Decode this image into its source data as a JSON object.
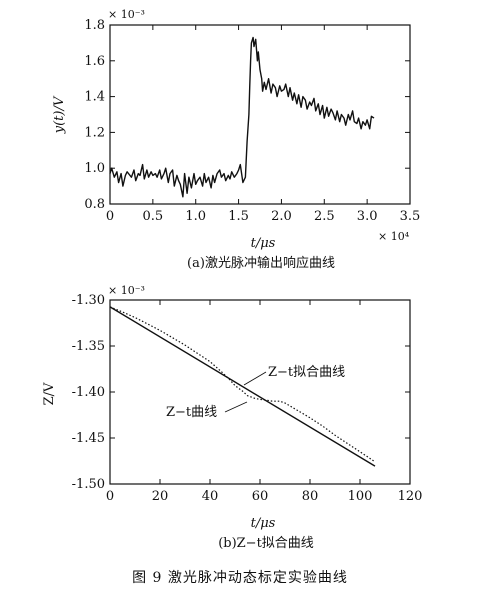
{
  "figure_caption": "图 9   激光脉冲动态标定实验曲线",
  "chart_data": [
    {
      "type": "line",
      "caption": "(a)激光脉冲输出响应曲线",
      "xlabel": "t/μs",
      "ylabel": "y(t)/V",
      "x_multiplier": "× 10⁴",
      "y_multiplier": "× 10⁻³",
      "xlim": [
        0,
        3.5
      ],
      "ylim": [
        0.8,
        1.8
      ],
      "xticks": [
        "0",
        "0.5",
        "1.0",
        "1.5",
        "2.0",
        "2.5",
        "3.0",
        "3.5"
      ],
      "yticks": [
        "0.8",
        "1.0",
        "1.2",
        "1.4",
        "1.6",
        "1.8"
      ],
      "grid": false,
      "series": [
        {
          "style": "solid",
          "x": [
            0,
            0.02,
            0.05,
            0.08,
            0.1,
            0.13,
            0.15,
            0.18,
            0.2,
            0.25,
            0.28,
            0.3,
            0.33,
            0.35,
            0.38,
            0.4,
            0.43,
            0.45,
            0.48,
            0.5,
            0.53,
            0.55,
            0.58,
            0.6,
            0.63,
            0.65,
            0.68,
            0.7,
            0.73,
            0.75,
            0.78,
            0.8,
            0.82,
            0.85,
            0.87,
            0.9,
            0.92,
            0.95,
            0.98,
            1.0,
            1.02,
            1.05,
            1.08,
            1.1,
            1.12,
            1.15,
            1.18,
            1.2,
            1.22,
            1.25,
            1.28,
            1.3,
            1.33,
            1.35,
            1.38,
            1.4,
            1.42,
            1.45,
            1.48,
            1.5,
            1.52,
            1.55,
            1.58,
            1.6,
            1.62,
            1.63,
            1.64,
            1.65,
            1.67,
            1.68,
            1.7,
            1.72,
            1.73,
            1.75,
            1.77,
            1.78,
            1.8,
            1.82,
            1.85,
            1.88,
            1.9,
            1.93,
            1.95,
            1.98,
            2.0,
            2.03,
            2.05,
            2.08,
            2.1,
            2.13,
            2.15,
            2.18,
            2.2,
            2.23,
            2.25,
            2.28,
            2.3,
            2.33,
            2.35,
            2.38,
            2.4,
            2.43,
            2.45,
            2.48,
            2.5,
            2.53,
            2.55,
            2.58,
            2.6,
            2.63,
            2.65,
            2.68,
            2.7,
            2.73,
            2.75,
            2.78,
            2.8,
            2.83,
            2.85,
            2.88,
            2.9,
            2.93,
            2.95,
            2.98,
            3.0,
            3.03,
            3.05,
            3.08
          ],
          "y": [
            0.97,
            1.0,
            0.95,
            0.98,
            0.92,
            0.97,
            0.9,
            0.96,
            0.98,
            0.95,
            0.99,
            0.93,
            0.97,
            0.96,
            1.02,
            0.94,
            0.99,
            0.95,
            0.98,
            0.96,
            0.97,
            0.95,
            0.99,
            0.94,
            0.97,
            1.0,
            0.92,
            0.97,
            0.99,
            0.9,
            0.96,
            0.93,
            0.91,
            0.84,
            0.97,
            0.86,
            0.95,
            0.89,
            0.97,
            0.91,
            0.93,
            0.95,
            0.9,
            0.97,
            0.92,
            0.95,
            0.89,
            0.96,
            0.92,
            0.97,
            0.99,
            0.95,
            0.97,
            0.93,
            0.96,
            0.94,
            0.98,
            0.95,
            0.97,
            0.99,
            1.02,
            0.92,
            0.95,
            1.15,
            1.3,
            1.45,
            1.6,
            1.7,
            1.73,
            1.68,
            1.72,
            1.6,
            1.65,
            1.55,
            1.5,
            1.43,
            1.48,
            1.44,
            1.5,
            1.42,
            1.47,
            1.45,
            1.4,
            1.46,
            1.43,
            1.44,
            1.47,
            1.4,
            1.45,
            1.38,
            1.42,
            1.36,
            1.41,
            1.34,
            1.4,
            1.38,
            1.33,
            1.37,
            1.35,
            1.39,
            1.32,
            1.36,
            1.3,
            1.35,
            1.28,
            1.34,
            1.29,
            1.33,
            1.31,
            1.27,
            1.32,
            1.26,
            1.3,
            1.28,
            1.24,
            1.3,
            1.27,
            1.32,
            1.26,
            1.25,
            1.28,
            1.22,
            1.26,
            1.24,
            1.27,
            1.22,
            1.29,
            1.28
          ]
        }
      ]
    },
    {
      "type": "line",
      "caption": "(b)Z−t拟合曲线",
      "xlabel": "t/μs",
      "ylabel": "Z/V",
      "y_multiplier": "× 10⁻³",
      "xlim": [
        0,
        120
      ],
      "ylim": [
        -1.5,
        -1.3
      ],
      "xticks": [
        "0",
        "20",
        "40",
        "60",
        "80",
        "100",
        "120"
      ],
      "yticks": [
        "-1.30",
        "-1.35",
        "-1.40",
        "-1.45",
        "-1.50"
      ],
      "grid": false,
      "annotations": [
        "Z−t拟合曲线",
        "Z−t曲线"
      ],
      "series": [
        {
          "name": "Z−t拟合曲线",
          "style": "solid",
          "x": [
            0,
            106
          ],
          "y": [
            -1.3075,
            -1.4805
          ]
        },
        {
          "name": "Z−t曲线",
          "style": "dotted",
          "x": [
            0,
            5,
            10,
            15,
            20,
            25,
            30,
            35,
            40,
            45,
            48,
            50,
            53,
            55,
            58,
            60,
            63,
            65,
            68,
            70,
            75,
            80,
            85,
            90,
            95,
            100,
            105,
            106
          ],
          "y": [
            -1.3075,
            -1.313,
            -1.319,
            -1.326,
            -1.333,
            -1.341,
            -1.349,
            -1.358,
            -1.367,
            -1.379,
            -1.387,
            -1.393,
            -1.399,
            -1.404,
            -1.407,
            -1.408,
            -1.409,
            -1.41,
            -1.41,
            -1.412,
            -1.42,
            -1.428,
            -1.437,
            -1.447,
            -1.456,
            -1.465,
            -1.474,
            -1.476
          ]
        }
      ]
    }
  ]
}
